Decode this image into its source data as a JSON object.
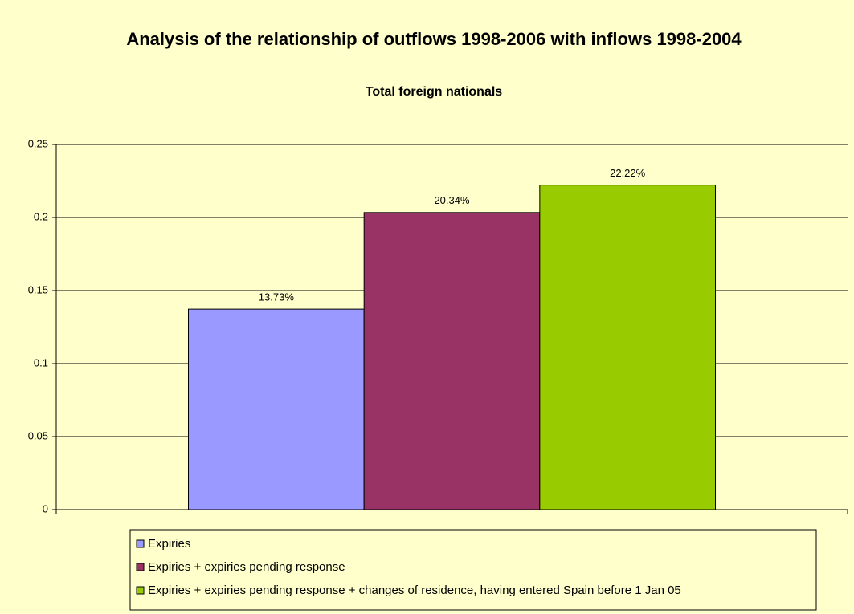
{
  "chart_data": {
    "type": "bar",
    "title": "Analysis of the relationship of outflows 1998-2006 with inflows 1998-2004",
    "subtitle": "Total foreign nationals",
    "categories": [
      null
    ],
    "series": [
      {
        "name": "Expiries",
        "color": "#9999ff",
        "values": [
          0.1373
        ],
        "value_labels": [
          "13.73%"
        ]
      },
      {
        "name": "Expiries + expiries pending response",
        "color": "#993366",
        "values": [
          0.2034
        ],
        "value_labels": [
          "20.34%"
        ]
      },
      {
        "name": "Expiries + expiries pending response + changes of residence, having entered Spain before 1 Jan 05",
        "color": "#99cc00",
        "values": [
          0.2222
        ],
        "value_labels": [
          "22.22%"
        ]
      }
    ],
    "ylim": [
      0,
      0.25
    ],
    "yticks": [
      0,
      0.05,
      0.1,
      0.15,
      0.2,
      0.25
    ],
    "grid": true,
    "legend": "bottom"
  }
}
